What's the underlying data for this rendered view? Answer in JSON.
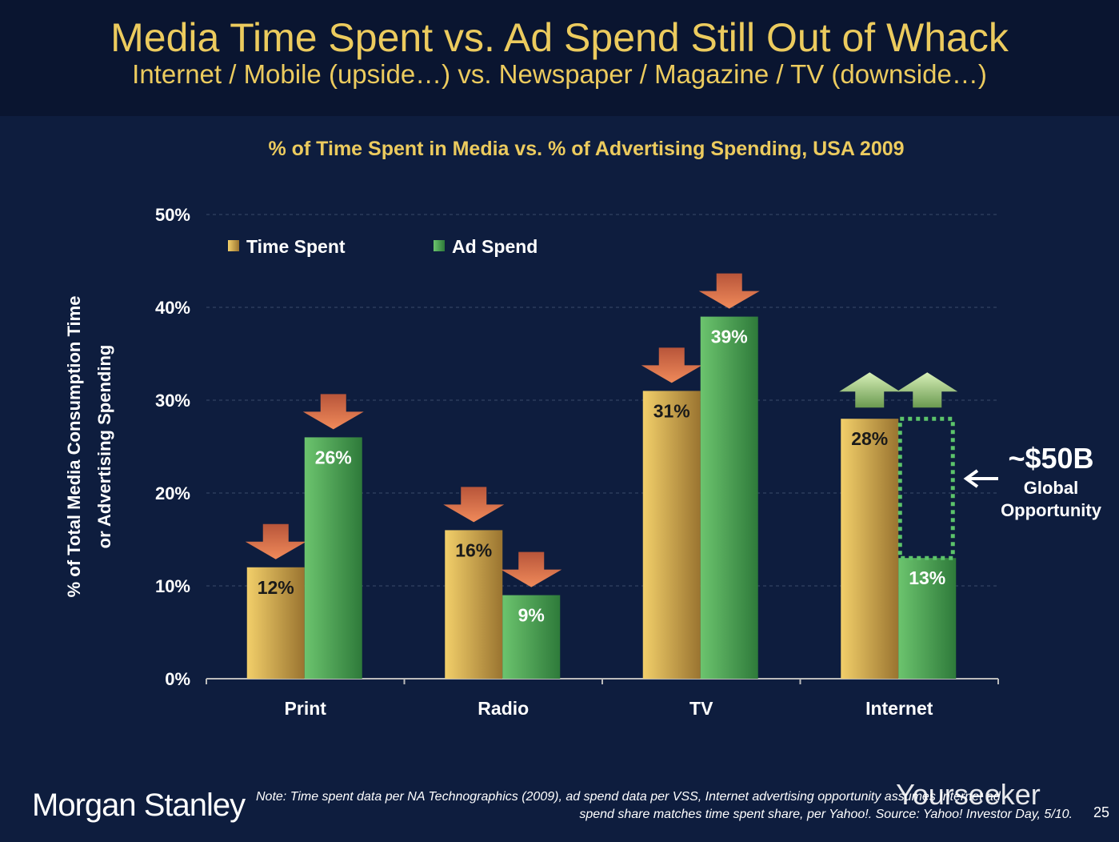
{
  "header": {
    "title": "Media Time Spent vs. Ad Spend Still Out of Whack",
    "subtitle": "Internet / Mobile (upside…) vs. Newspaper / Magazine / TV (downside…)"
  },
  "chart_data": {
    "type": "bar",
    "title": "% of Time Spent in Media vs. % of Advertising Spending, USA 2009",
    "ylabel_line1": "% of Total Media Consumption Time",
    "ylabel_line2": "or Advertising Spending",
    "categories": [
      "Print",
      "Radio",
      "TV",
      "Internet"
    ],
    "series": [
      {
        "name": "Time Spent",
        "values": [
          12,
          16,
          31,
          28
        ],
        "labels": [
          "12%",
          "16%",
          "31%",
          "28%"
        ],
        "trend": [
          "down",
          "down",
          "down",
          "up"
        ],
        "color": "#e0b050"
      },
      {
        "name": "Ad Spend",
        "values": [
          26,
          9,
          39,
          13
        ],
        "labels": [
          "26%",
          "9%",
          "39%",
          "13%"
        ],
        "trend": [
          "down",
          "down",
          "down",
          "up"
        ],
        "color": "#4caa55"
      }
    ],
    "ylim": [
      0,
      50
    ],
    "yticks": [
      "0%",
      "10%",
      "20%",
      "30%",
      "40%",
      "50%"
    ],
    "grid": true,
    "legend": "top-left",
    "annotation": {
      "gap_from": 13,
      "gap_to": 28,
      "category": "Internet",
      "value": "~$50B",
      "line1": "Global",
      "line2": "Opportunity"
    }
  },
  "footer": {
    "logo": "Morgan Stanley",
    "note_line1": "Note: Time spent data per NA Technographics (2009), ad spend data per VSS, Internet advertising opportunity assumes Internet ad",
    "note_line2": "spend share matches time spent share, per Yahoo!. Source: Yahoo! Investor Day, 5/10.",
    "page": "25",
    "watermark": "Yourseeker"
  }
}
